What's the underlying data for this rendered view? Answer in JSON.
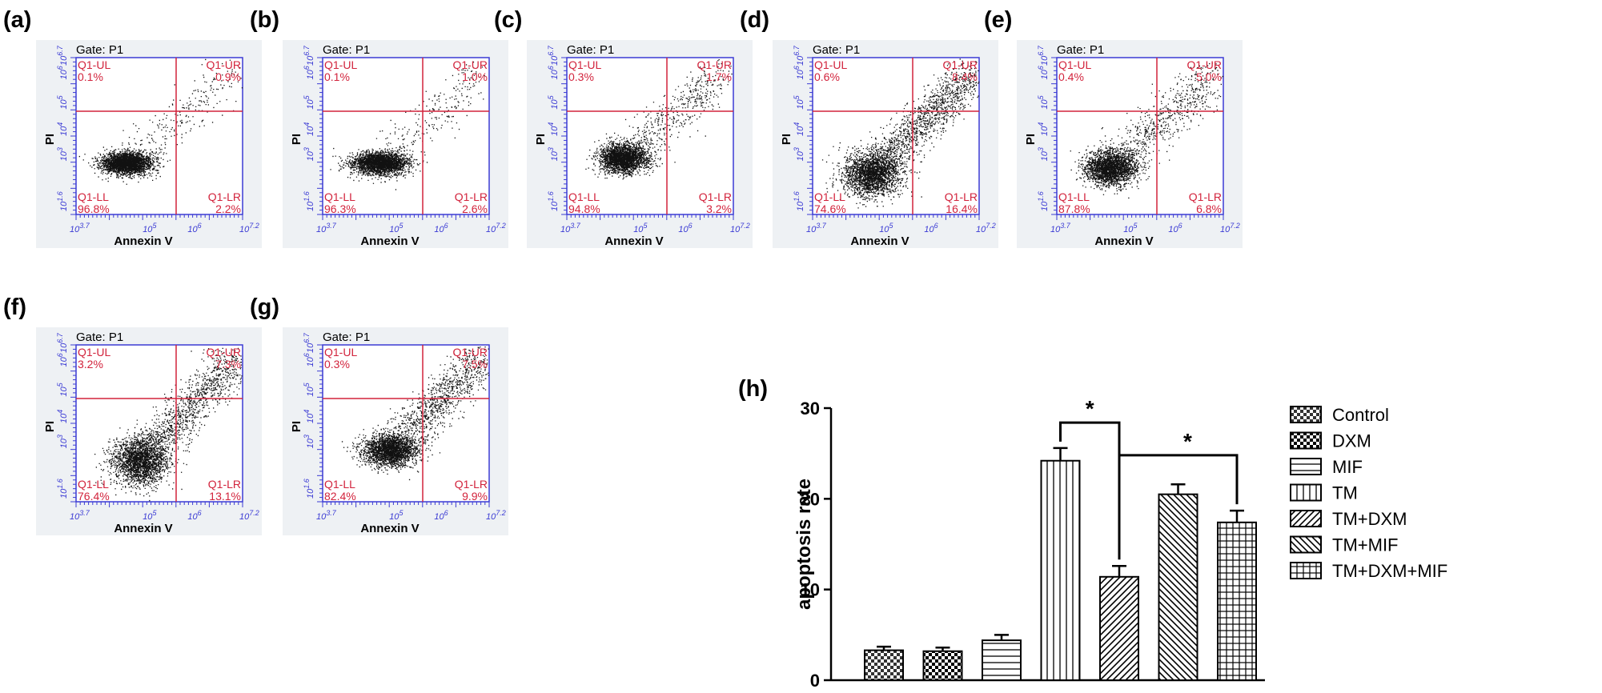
{
  "figure": {
    "flow_common": {
      "gate_label": "Gate: P1",
      "x_axis_label": "Annexin V",
      "y_axis_label": "PI",
      "x_ticks": [
        "10^3.7",
        "10^5",
        "10^6",
        "10^7.2"
      ],
      "y_ticks": [
        "10^1.6",
        "10^3",
        "10^4",
        "10^5",
        "10^6",
        "10^6.7"
      ],
      "quadrant_names": {
        "ul": "Q1-UL",
        "ur": "Q1-UR",
        "ll": "Q1-LL",
        "lr": "Q1-LR"
      },
      "colors": {
        "panel_bg": "#eef1f4",
        "axis": "#3b3bd4",
        "gate": "#d2233c",
        "quad_text": "#d2233c",
        "dots": "#111111"
      }
    },
    "flow_panels": [
      {
        "label": "(a)",
        "q": {
          "ul": "0.1%",
          "ur": "0.9%",
          "ll": "96.8%",
          "lr": "2.2%"
        }
      },
      {
        "label": "(b)",
        "q": {
          "ul": "0.1%",
          "ur": "1.0%",
          "ll": "96.3%",
          "lr": "2.6%"
        }
      },
      {
        "label": "(c)",
        "q": {
          "ul": "0.3%",
          "ur": "1.7%",
          "ll": "94.8%",
          "lr": "3.2%"
        }
      },
      {
        "label": "(d)",
        "q": {
          "ul": "0.6%",
          "ur": "8.4%",
          "ll": "74.6%",
          "lr": "16.4%"
        }
      },
      {
        "label": "(e)",
        "q": {
          "ul": "0.4%",
          "ur": "5.0%",
          "ll": "87.8%",
          "lr": "6.8%"
        }
      },
      {
        "label": "(f)",
        "q": {
          "ul": "3.2%",
          "ur": "7.3%",
          "ll": "76.4%",
          "lr": "13.1%"
        }
      },
      {
        "label": "(g)",
        "q": {
          "ul": "0.3%",
          "ur": "7.5%",
          "ll": "82.4%",
          "lr": "9.9%"
        }
      }
    ]
  },
  "chart_data": {
    "type": "bar",
    "panel_label": "(h)",
    "title": "",
    "xlabel": "",
    "ylabel": "apoptosis rate",
    "ylim": [
      0,
      30
    ],
    "yticks": [
      0,
      10,
      20,
      30
    ],
    "categories": [
      "Control",
      "DXM",
      "MIF",
      "TM",
      "TM+DXM",
      "TM+MIF",
      "TM+DXM+MIF"
    ],
    "values": [
      3.3,
      3.2,
      4.4,
      24.2,
      11.4,
      20.5,
      17.4
    ],
    "errors": [
      0.4,
      0.4,
      0.6,
      1.4,
      1.2,
      1.1,
      1.3
    ],
    "significance": [
      {
        "from": 3,
        "to": 4,
        "label": "*"
      },
      {
        "from": 4,
        "to": 6,
        "label": "*"
      }
    ],
    "legend_position": "right"
  }
}
